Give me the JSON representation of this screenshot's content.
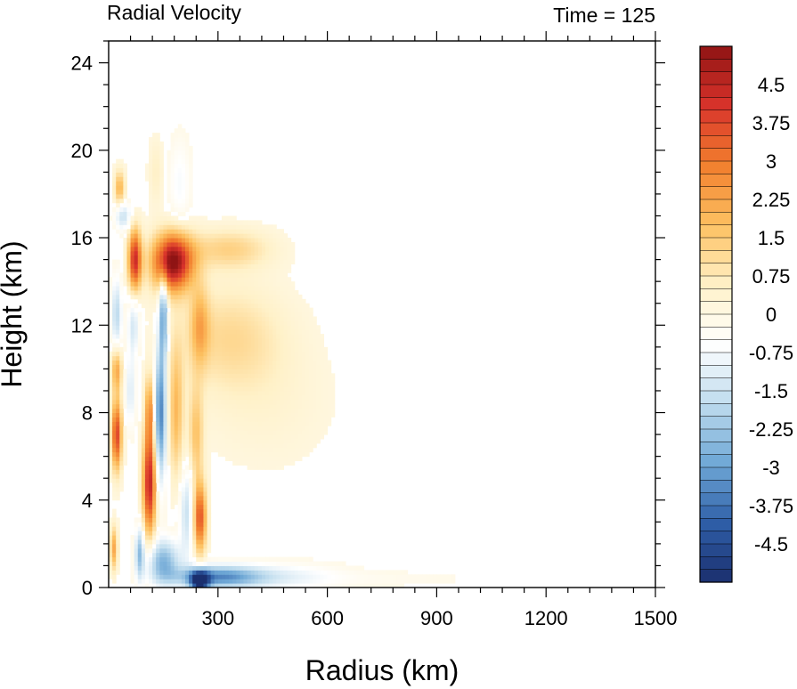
{
  "chart_data": {
    "type": "heatmap",
    "title": "Radial Velocity",
    "right_title": "Time = 125",
    "xlabel": "Radius (km)",
    "ylabel": "Height (km)",
    "xlim": [
      0,
      1500
    ],
    "ylim": [
      0,
      25
    ],
    "x_ticks": [
      "300",
      "600",
      "900",
      "1200",
      "1500"
    ],
    "x_tick_values": [
      300,
      600,
      900,
      1200,
      1500
    ],
    "y_ticks": [
      "0",
      "4",
      "8",
      "12",
      "16",
      "20",
      "24"
    ],
    "y_tick_values": [
      0,
      4,
      8,
      12,
      16,
      20,
      24
    ],
    "colorbar": {
      "labels": [
        "4.5",
        "3.75",
        "3",
        "2.25",
        "1.5",
        "0.75",
        "0",
        "-0.75",
        "-1.5",
        "-2.25",
        "-3",
        "-3.75",
        "-4.5"
      ],
      "label_values": [
        4.5,
        3.75,
        3,
        2.25,
        1.5,
        0.75,
        0,
        -0.75,
        -1.5,
        -2.25,
        -3,
        -3.75,
        -4.5
      ],
      "min": -5.25,
      "max": 5.25,
      "step": 0.25,
      "colormap": [
        "#1b2f6e",
        "#2f5fa8",
        "#6fa8d6",
        "#bfdcee",
        "#ffffff",
        "#fff1c8",
        "#fdc161",
        "#f2802e",
        "#d9332b",
        "#8f1414"
      ]
    },
    "features": [
      {
        "r": 175,
        "z": 14.9,
        "dr": 55,
        "dz": 1.3,
        "v": 5.3
      },
      {
        "r": 330,
        "z": 15.5,
        "dr": 115,
        "dz": 0.9,
        "v": 1.3
      },
      {
        "r": 330,
        "z": 11.5,
        "dr": 150,
        "dz": 2.4,
        "v": 1.1
      },
      {
        "r": 250,
        "z": 12.0,
        "dr": 25,
        "dz": 1.8,
        "v": 1.6
      },
      {
        "r": 430,
        "z": 8.5,
        "dr": 180,
        "dz": 3.0,
        "v": 0.35
      },
      {
        "r": 250,
        "z": 3.2,
        "dr": 18,
        "dz": 1.6,
        "v": 3.6
      },
      {
        "r": 240,
        "z": 7.0,
        "dr": 20,
        "dz": 2.2,
        "v": 1.6
      },
      {
        "r": 215,
        "z": 3.5,
        "dr": 20,
        "dz": 2.0,
        "v": -1.6
      },
      {
        "r": 112,
        "z": 4.8,
        "dr": 18,
        "dz": 2.4,
        "v": 4.5
      },
      {
        "r": 112,
        "z": 8.2,
        "dr": 12,
        "dz": 1.6,
        "v": 2.2
      },
      {
        "r": 142,
        "z": 8.0,
        "dr": 16,
        "dz": 3.0,
        "v": -3.6
      },
      {
        "r": 150,
        "z": 12.5,
        "dr": 12,
        "dz": 2.0,
        "v": -3.0
      },
      {
        "r": 22,
        "z": 7.0,
        "dr": 14,
        "dz": 1.6,
        "v": 3.9
      },
      {
        "r": 22,
        "z": 10.0,
        "dr": 14,
        "dz": 1.0,
        "v": 2.2
      },
      {
        "r": 22,
        "z": 12.5,
        "dr": 14,
        "dz": 1.6,
        "v": -1.8
      },
      {
        "r": 30,
        "z": 18.3,
        "dr": 14,
        "dz": 0.8,
        "v": 2.0
      },
      {
        "r": 40,
        "z": 17.0,
        "dr": 22,
        "dz": 0.6,
        "v": -1.6
      },
      {
        "r": 72,
        "z": 15.0,
        "dr": 18,
        "dz": 1.4,
        "v": 4.2
      },
      {
        "r": 68,
        "z": 12.0,
        "dr": 16,
        "dz": 1.4,
        "v": -1.4
      },
      {
        "r": 60,
        "z": 9.0,
        "dr": 14,
        "dz": 1.6,
        "v": -1.2
      },
      {
        "r": 150,
        "z": 1.2,
        "dr": 45,
        "dz": 1.0,
        "v": -2.6
      },
      {
        "r": 300,
        "z": 0.5,
        "dr": 120,
        "dz": 0.5,
        "v": -3.2
      },
      {
        "r": 250,
        "z": 0.3,
        "dr": 25,
        "dz": 0.5,
        "v": -4.8
      },
      {
        "r": 480,
        "z": 0.5,
        "dr": 160,
        "dz": 0.6,
        "v": -0.9
      },
      {
        "r": 780,
        "z": 0.4,
        "dr": 250,
        "dz": 0.4,
        "v": -0.2
      },
      {
        "r": 14,
        "z": 1.8,
        "dr": 10,
        "dz": 1.0,
        "v": 2.2
      },
      {
        "r": 85,
        "z": 1.6,
        "dr": 12,
        "dz": 1.2,
        "v": -2.3
      },
      {
        "r": 185,
        "z": 8.0,
        "dr": 20,
        "dz": 3.0,
        "v": 1.8
      },
      {
        "r": 195,
        "z": 18.5,
        "dr": 30,
        "dz": 2.0,
        "v": -0.7
      },
      {
        "r": 130,
        "z": 19.0,
        "dr": 20,
        "dz": 1.5,
        "v": 0.6
      }
    ]
  }
}
